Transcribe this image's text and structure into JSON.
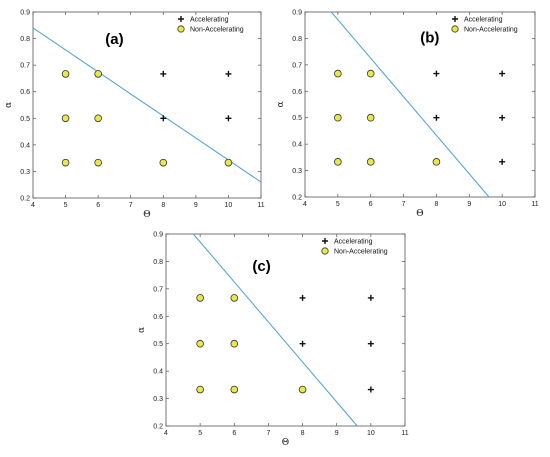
{
  "chart_data": [
    {
      "type": "scatter",
      "panel_label": "(a)",
      "xlabel": "Θ",
      "ylabel": "α",
      "xlim": [
        4,
        11
      ],
      "ylim": [
        0.2,
        0.9
      ],
      "xticks": [
        4,
        5,
        6,
        7,
        8,
        9,
        10,
        11
      ],
      "yticks": [
        0.2,
        0.3,
        0.4,
        0.5,
        0.6,
        0.7,
        0.8,
        0.9
      ],
      "legend": {
        "position": "top-right",
        "entries": [
          "Accelerating",
          "Non-Accelerating"
        ]
      },
      "series": [
        {
          "name": "Accelerating",
          "marker": "plus",
          "points": [
            [
              8,
              0.667
            ],
            [
              10,
              0.667
            ],
            [
              8,
              0.5
            ],
            [
              10,
              0.5
            ]
          ]
        },
        {
          "name": "Non-Accelerating",
          "marker": "circle",
          "points": [
            [
              5,
              0.667
            ],
            [
              6,
              0.667
            ],
            [
              5,
              0.5
            ],
            [
              6,
              0.5
            ],
            [
              5,
              0.333
            ],
            [
              6,
              0.333
            ],
            [
              8,
              0.333
            ],
            [
              10,
              0.333
            ]
          ]
        }
      ],
      "boundary": [
        [
          4,
          0.84
        ],
        [
          11,
          0.26
        ]
      ]
    },
    {
      "type": "scatter",
      "panel_label": "(b)",
      "xlabel": "Θ",
      "ylabel": "α",
      "xlim": [
        4,
        11
      ],
      "ylim": [
        0.2,
        0.9
      ],
      "xticks": [
        4,
        5,
        6,
        7,
        8,
        9,
        10,
        11
      ],
      "yticks": [
        0.2,
        0.3,
        0.4,
        0.5,
        0.6,
        0.7,
        0.8,
        0.9
      ],
      "legend": {
        "position": "top-right",
        "entries": [
          "Accelerating",
          "Non-Accelerating"
        ]
      },
      "series": [
        {
          "name": "Accelerating",
          "marker": "plus",
          "points": [
            [
              8,
              0.667
            ],
            [
              10,
              0.667
            ],
            [
              8,
              0.5
            ],
            [
              10,
              0.5
            ],
            [
              10,
              0.333
            ]
          ]
        },
        {
          "name": "Non-Accelerating",
          "marker": "circle",
          "points": [
            [
              5,
              0.667
            ],
            [
              6,
              0.667
            ],
            [
              5,
              0.5
            ],
            [
              6,
              0.5
            ],
            [
              5,
              0.333
            ],
            [
              6,
              0.333
            ],
            [
              8,
              0.333
            ]
          ]
        }
      ],
      "boundary": [
        [
          4.8,
          0.9
        ],
        [
          9.6,
          0.2
        ]
      ]
    },
    {
      "type": "scatter",
      "panel_label": "(c)",
      "xlabel": "Θ",
      "ylabel": "α",
      "xlim": [
        4,
        11
      ],
      "ylim": [
        0.2,
        0.9
      ],
      "xticks": [
        4,
        5,
        6,
        7,
        8,
        9,
        10,
        11
      ],
      "yticks": [
        0.2,
        0.3,
        0.4,
        0.5,
        0.6,
        0.7,
        0.8,
        0.9
      ],
      "legend": {
        "position": "top-right",
        "entries": [
          "Accelerating",
          "Non-Accelerating"
        ]
      },
      "series": [
        {
          "name": "Accelerating",
          "marker": "plus",
          "points": [
            [
              8,
              0.667
            ],
            [
              10,
              0.667
            ],
            [
              8,
              0.5
            ],
            [
              10,
              0.5
            ],
            [
              10,
              0.333
            ]
          ]
        },
        {
          "name": "Non-Accelerating",
          "marker": "circle",
          "points": [
            [
              5,
              0.667
            ],
            [
              6,
              0.667
            ],
            [
              5,
              0.5
            ],
            [
              6,
              0.5
            ],
            [
              5,
              0.333
            ],
            [
              6,
              0.333
            ],
            [
              8,
              0.333
            ]
          ]
        }
      ],
      "boundary": [
        [
          4.8,
          0.9
        ],
        [
          9.6,
          0.2
        ]
      ]
    }
  ],
  "colors": {
    "boundary_line": "#4a9fd4",
    "circle_fill": "#e8e84a",
    "circle_stroke": "#333333",
    "plus": "#111111",
    "frame": "#555555"
  }
}
